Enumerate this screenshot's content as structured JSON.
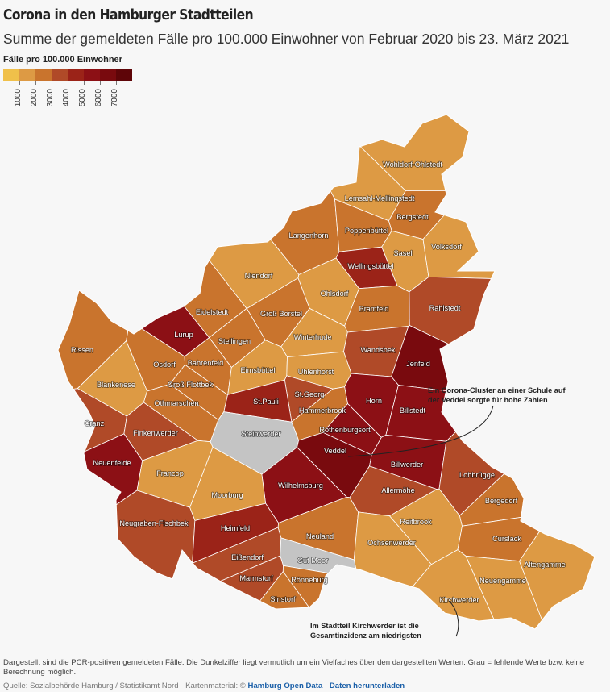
{
  "title": "Corona in den Hamburger Stadtteilen",
  "subtitle": "Summe der gemeldeten Fälle pro 100.000 Einwohner von Februar 2020 bis 23. März 2021",
  "legend": {
    "title": "Fälle pro 100.000 Einwohner",
    "colors": [
      "#f0c04a",
      "#dd9a44",
      "#c9742d",
      "#b04a28",
      "#9b2318",
      "#8c1015",
      "#790a0e",
      "#5e0508"
    ],
    "ticks": [
      "1000",
      "2000",
      "3000",
      "4000",
      "5000",
      "6000",
      "7000"
    ]
  },
  "map": {
    "missing_color": "#c4c4c4",
    "districts": [
      {
        "name": "Wohldorf-Ohlstedt",
        "color": "#dd9a44"
      },
      {
        "name": "Lemsahl-Mellingstedt",
        "color": "#dd9a44"
      },
      {
        "name": "Bergstedt",
        "color": "#c9742d"
      },
      {
        "name": "Langenhorn",
        "color": "#c9742d"
      },
      {
        "name": "Poppenbüttel",
        "color": "#c9742d"
      },
      {
        "name": "Sasel",
        "color": "#dd9a44"
      },
      {
        "name": "Volksdorf",
        "color": "#dd9a44"
      },
      {
        "name": "Wellingsbüttel",
        "color": "#9b2318"
      },
      {
        "name": "Niendorf",
        "color": "#dd9a44"
      },
      {
        "name": "Ohlsdorf",
        "color": "#dd9a44"
      },
      {
        "name": "Rahlstedt",
        "color": "#b04a28"
      },
      {
        "name": "Eidelstedt",
        "color": "#c9742d"
      },
      {
        "name": "Groß Borstel",
        "color": "#c9742d"
      },
      {
        "name": "Bramfeld",
        "color": "#c9742d"
      },
      {
        "name": "Rissen",
        "color": "#c9742d"
      },
      {
        "name": "Lurup",
        "color": "#8c1015"
      },
      {
        "name": "Stellingen",
        "color": "#c9742d"
      },
      {
        "name": "Winterhude",
        "color": "#dd9a44"
      },
      {
        "name": "Wandsbek",
        "color": "#b04a28"
      },
      {
        "name": "Jenfeld",
        "color": "#790a0e"
      },
      {
        "name": "Osdorf",
        "color": "#c9742d"
      },
      {
        "name": "Bahrenfeld",
        "color": "#c9742d"
      },
      {
        "name": "Eimsbüttel",
        "color": "#dd9a44"
      },
      {
        "name": "Uhlenhorst",
        "color": "#dd9a44"
      },
      {
        "name": "Blankenese",
        "color": "#dd9a44"
      },
      {
        "name": "Groß Flottbek",
        "color": "#c9742d"
      },
      {
        "name": "St.Georg",
        "color": "#b04a28"
      },
      {
        "name": "Othmarschen",
        "color": "#c9742d"
      },
      {
        "name": "St.Pauli",
        "color": "#9b2318"
      },
      {
        "name": "Horn",
        "color": "#8c1015"
      },
      {
        "name": "Hammerbrook",
        "color": "#c9742d"
      },
      {
        "name": "Billstedt",
        "color": "#8c1015"
      },
      {
        "name": "Cranz",
        "color": "#b04a28"
      },
      {
        "name": "Finkenwerder",
        "color": "#b04a28"
      },
      {
        "name": "Steinwerder",
        "color": "#c4c4c4"
      },
      {
        "name": "Rothenburgsort",
        "color": "#8c1015"
      },
      {
        "name": "Veddel",
        "color": "#790a0e"
      },
      {
        "name": "Neuenfelde",
        "color": "#8c1015"
      },
      {
        "name": "Billwerder",
        "color": "#8c1015"
      },
      {
        "name": "Francop",
        "color": "#dd9a44"
      },
      {
        "name": "Wilhelmsburg",
        "color": "#8c1015"
      },
      {
        "name": "Lohbrügge",
        "color": "#b04a28"
      },
      {
        "name": "Allermöhe",
        "color": "#b04a28"
      },
      {
        "name": "Moorburg",
        "color": "#dd9a44"
      },
      {
        "name": "Bergedorf",
        "color": "#c9742d"
      },
      {
        "name": "Neugraben-Fischbek",
        "color": "#b04a28"
      },
      {
        "name": "Reitbrook",
        "color": "#dd9a44"
      },
      {
        "name": "Heimfeld",
        "color": "#9b2318"
      },
      {
        "name": "Neuland",
        "color": "#c9742d"
      },
      {
        "name": "Curslack",
        "color": "#c9742d"
      },
      {
        "name": "Ochsenwerder",
        "color": "#dd9a44"
      },
      {
        "name": "Eißendorf",
        "color": "#b04a28"
      },
      {
        "name": "Gut Moor",
        "color": "#c4c4c4"
      },
      {
        "name": "Altengamme",
        "color": "#dd9a44"
      },
      {
        "name": "Marmstorf",
        "color": "#b04a28"
      },
      {
        "name": "Rönneburg",
        "color": "#c9742d"
      },
      {
        "name": "Neuengamme",
        "color": "#dd9a44"
      },
      {
        "name": "Sinstorf",
        "color": "#c9742d"
      },
      {
        "name": "Kirchwerder",
        "color": "#dd9a44"
      }
    ]
  },
  "annotations": [
    {
      "lines": [
        "Ein Corona-Cluster an einer Schule auf",
        "der Veddel sorgte für hohe Zahlen"
      ]
    },
    {
      "lines": [
        "Im Stadtteil Kirchwerder ist die",
        "Gesamtinzidenz am niedrigsten"
      ]
    }
  ],
  "footnote": "Dargestellt sind die PCR-positiven gemeldeten Fälle. Die Dunkelziffer liegt vermutlich um ein Vielfaches über den dargestellten Werten. Grau = fehlende Werte bzw. keine Berechnung möglich.",
  "source": {
    "prefix": "Quelle: Sozialbehörde Hamburg / Statistikamt Nord · Kartenmaterial: ©",
    "link1": "Hamburg Open Data",
    "separator": "·",
    "link2": "Daten herunterladen"
  }
}
